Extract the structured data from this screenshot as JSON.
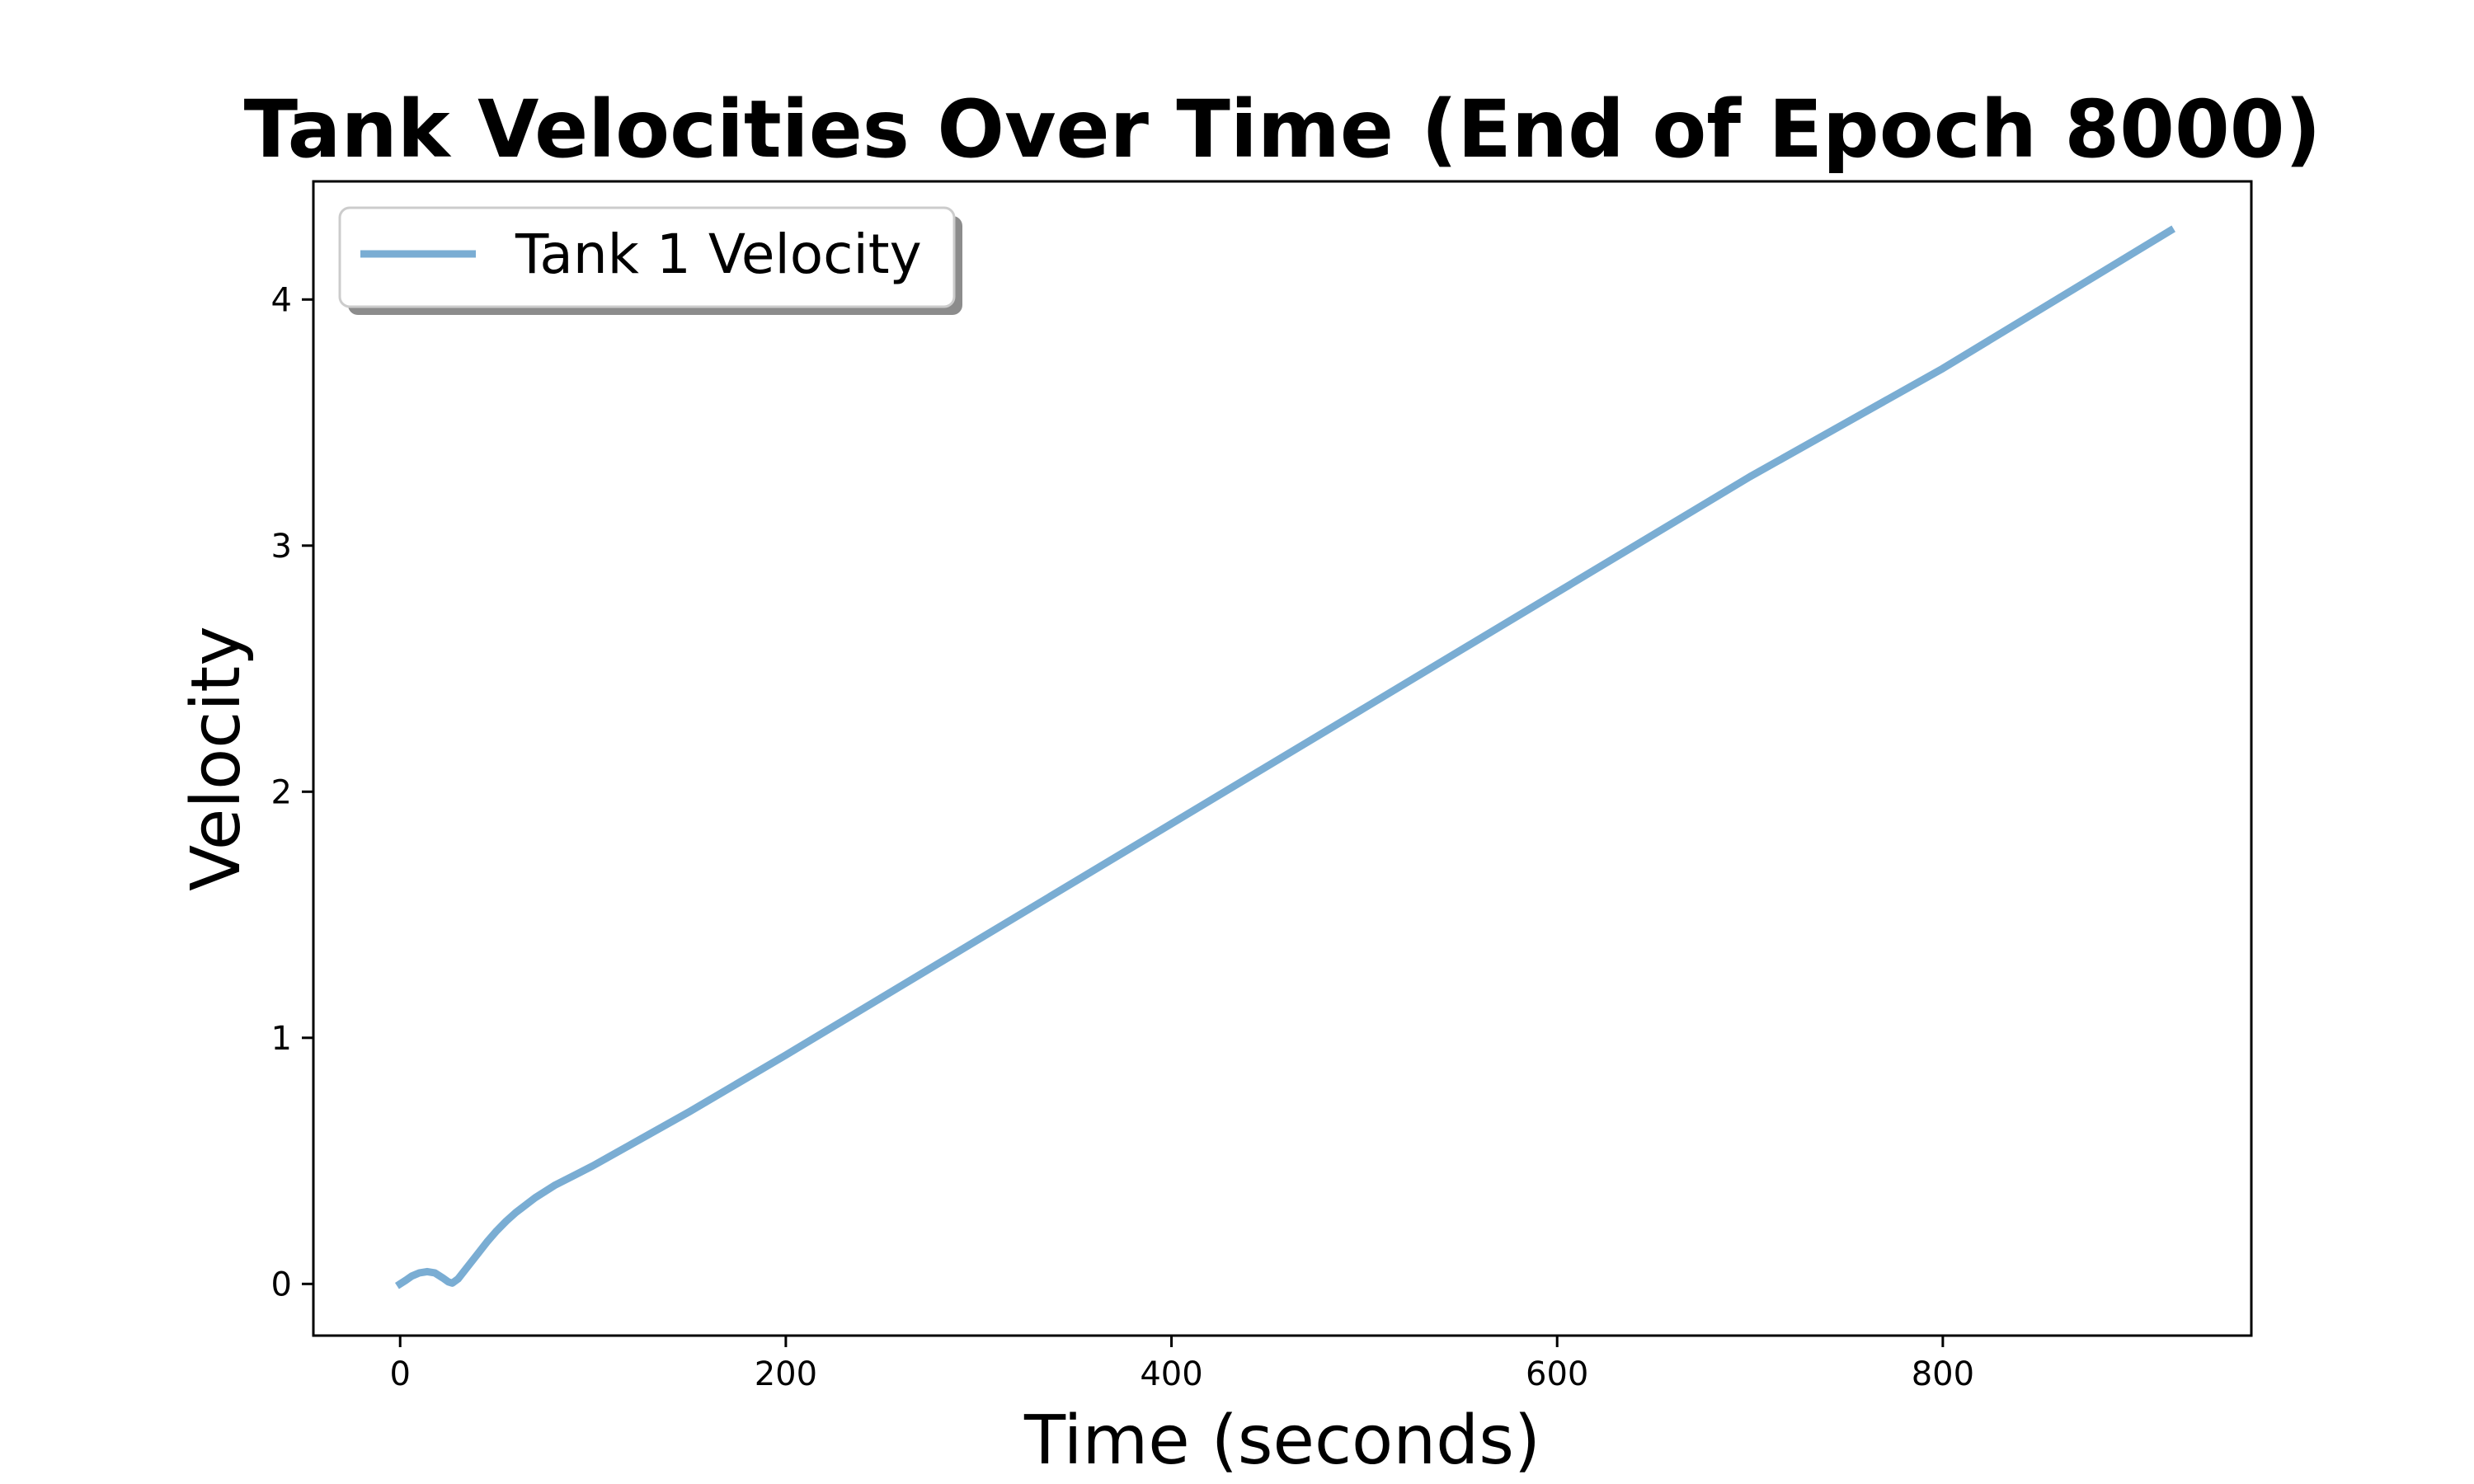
{
  "chart_data": {
    "type": "line",
    "title": "Tank Velocities Over Time (End of Epoch 8000)",
    "xlabel": "Time (seconds)",
    "ylabel": "Velocity",
    "xlim": [
      -45,
      960
    ],
    "ylim": [
      -0.21,
      4.48
    ],
    "xticks": [
      0,
      200,
      400,
      600,
      800
    ],
    "yticks": [
      0,
      1,
      2,
      3,
      4
    ],
    "grid": false,
    "legend": {
      "placement": "top-left",
      "shadow": true
    },
    "series": [
      {
        "name": "Tank 1 Velocity",
        "color": "#7aadd3",
        "x": [
          0,
          3,
          6,
          10,
          14,
          18,
          22,
          25,
          27,
          30,
          35,
          40,
          45,
          50,
          55,
          60,
          70,
          80,
          90,
          100,
          150,
          200,
          300,
          400,
          500,
          600,
          700,
          800,
          918
        ],
        "y": [
          0.0,
          0.015,
          0.032,
          0.045,
          0.05,
          0.045,
          0.025,
          0.008,
          0.003,
          0.02,
          0.07,
          0.12,
          0.17,
          0.215,
          0.255,
          0.29,
          0.35,
          0.4,
          0.44,
          0.48,
          0.7,
          0.93,
          1.4,
          1.87,
          2.34,
          2.81,
          3.28,
          3.72,
          4.28
        ]
      }
    ]
  }
}
